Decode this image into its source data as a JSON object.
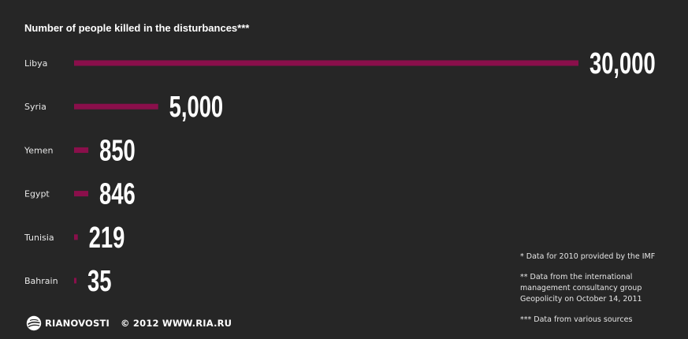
{
  "chart_data": {
    "type": "bar",
    "orientation": "horizontal",
    "title": "Number of people killed in the disturbances***",
    "categories": [
      "Libya",
      "Syria",
      "Yemen",
      "Egypt",
      "Tunisia",
      "Bahrain"
    ],
    "values": [
      30000,
      5000,
      850,
      846,
      219,
      35
    ],
    "value_labels": [
      "30,000",
      "5,000",
      "850",
      "846",
      "219",
      "35"
    ],
    "xlim": [
      0,
      30000
    ],
    "grid": false,
    "legend": "none",
    "bar_color": "#8a0f4b",
    "label_color": "#e8e8e8"
  },
  "footnotes": [
    "* Data for 2010 provided by the IMF",
    "** Data from the international management consultancy group Geopolicity on October 14, 2011",
    "*** Data from various sources"
  ],
  "credits": {
    "logo_icon": "rianovosti-globe-icon",
    "agency": "RIANOVOSTI",
    "copyright": "© 2012 WWW.RIA.RU"
  },
  "colors": {
    "background": "#262626",
    "bar": "#8a0f4b",
    "text": "#ffffff"
  }
}
